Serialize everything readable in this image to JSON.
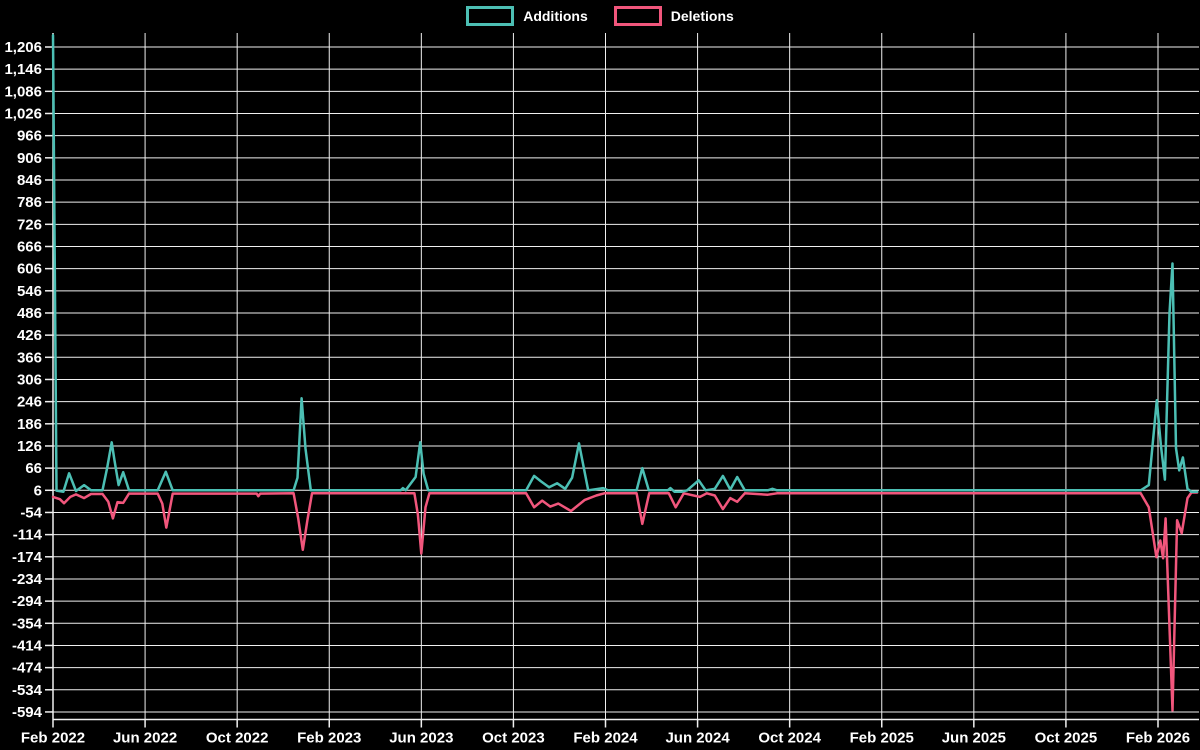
{
  "legend": {
    "items": [
      {
        "label": "Additions",
        "color": "#4cbfb4"
      },
      {
        "label": "Deletions",
        "color": "#f1567c"
      }
    ]
  },
  "colors": {
    "background": "#000000",
    "grid": "#f0f0f0",
    "axis": "#f0f0f0",
    "text": "#ffffff",
    "additions": "#4cbfb4",
    "deletions": "#f1567c"
  },
  "chart_data": {
    "type": "line",
    "title": "",
    "xlabel": "",
    "ylabel": "",
    "grid": true,
    "legend_position": "top-center",
    "x_axis": {
      "unit": "months since Feb 2022",
      "range": [
        0,
        49.75
      ],
      "ticks": [
        {
          "pos": 0,
          "label": "Feb 2022"
        },
        {
          "pos": 4,
          "label": "Jun 2022"
        },
        {
          "pos": 8,
          "label": "Oct 2022"
        },
        {
          "pos": 12,
          "label": "Feb 2023"
        },
        {
          "pos": 16,
          "label": "Jun 2023"
        },
        {
          "pos": 20,
          "label": "Oct 2023"
        },
        {
          "pos": 24,
          "label": "Feb 2024"
        },
        {
          "pos": 28,
          "label": "Jun 2024"
        },
        {
          "pos": 32,
          "label": "Oct 2024"
        },
        {
          "pos": 36,
          "label": "Feb 2025"
        },
        {
          "pos": 40,
          "label": "Jun 2025"
        },
        {
          "pos": 44,
          "label": "Oct 2025"
        },
        {
          "pos": 48,
          "label": "Feb 2026"
        }
      ]
    },
    "y_axis": {
      "step": 60,
      "ticks": [
        1206,
        1146,
        1086,
        1026,
        966,
        906,
        846,
        786,
        726,
        666,
        606,
        546,
        486,
        426,
        366,
        306,
        246,
        186,
        126,
        66,
        6,
        -54,
        -114,
        -174,
        -234,
        -294,
        -354,
        -414,
        -474,
        -534,
        -594
      ],
      "range": [
        -616,
        1241
      ]
    },
    "series": [
      {
        "name": "Additions",
        "color": "#4cbfb4",
        "points": [
          [
            0,
            1238
          ],
          [
            0.15,
            5
          ],
          [
            0.45,
            2
          ],
          [
            0.7,
            52
          ],
          [
            1.0,
            4
          ],
          [
            1.35,
            20
          ],
          [
            1.65,
            6
          ],
          [
            2.15,
            6
          ],
          [
            2.35,
            66
          ],
          [
            2.55,
            136
          ],
          [
            2.67,
            87
          ],
          [
            2.85,
            20
          ],
          [
            3.05,
            55
          ],
          [
            3.3,
            6
          ],
          [
            4.55,
            6
          ],
          [
            4.9,
            56
          ],
          [
            5.2,
            6
          ],
          [
            8,
            6
          ],
          [
            10.45,
            6
          ],
          [
            10.62,
            40
          ],
          [
            10.8,
            255
          ],
          [
            10.97,
            119
          ],
          [
            11.2,
            6
          ],
          [
            15.1,
            6
          ],
          [
            15.2,
            12
          ],
          [
            15.32,
            6
          ],
          [
            15.75,
            42
          ],
          [
            15.95,
            136
          ],
          [
            16.1,
            51
          ],
          [
            16.3,
            6
          ],
          [
            18,
            6
          ],
          [
            20.55,
            6
          ],
          [
            20.9,
            45
          ],
          [
            21.2,
            30
          ],
          [
            21.55,
            14
          ],
          [
            21.9,
            25
          ],
          [
            22.25,
            10
          ],
          [
            22.55,
            40
          ],
          [
            22.85,
            133
          ],
          [
            23.25,
            6
          ],
          [
            23.9,
            12
          ],
          [
            24.1,
            6
          ],
          [
            25.35,
            6
          ],
          [
            25.6,
            66
          ],
          [
            25.88,
            6
          ],
          [
            26.7,
            6
          ],
          [
            26.82,
            12
          ],
          [
            27.0,
            2
          ],
          [
            27.3,
            2
          ],
          [
            27.55,
            6
          ],
          [
            28.05,
            33
          ],
          [
            28.35,
            6
          ],
          [
            28.75,
            10
          ],
          [
            29.1,
            45
          ],
          [
            29.42,
            8
          ],
          [
            29.72,
            42
          ],
          [
            30.05,
            6
          ],
          [
            31.05,
            6
          ],
          [
            31.25,
            10
          ],
          [
            31.45,
            6
          ],
          [
            40,
            6
          ],
          [
            47.25,
            6
          ],
          [
            47.6,
            20
          ],
          [
            47.95,
            250
          ],
          [
            48.12,
            130
          ],
          [
            48.3,
            35
          ],
          [
            48.5,
            485
          ],
          [
            48.63,
            620
          ],
          [
            48.78,
            120
          ],
          [
            48.92,
            60
          ],
          [
            49.08,
            95
          ],
          [
            49.28,
            10
          ],
          [
            49.45,
            2
          ],
          [
            49.7,
            2
          ]
        ]
      },
      {
        "name": "Deletions",
        "color": "#f1567c",
        "points": [
          [
            0,
            -12
          ],
          [
            0.3,
            -18
          ],
          [
            0.48,
            -29
          ],
          [
            0.75,
            -12
          ],
          [
            1.0,
            -5
          ],
          [
            1.35,
            -15
          ],
          [
            1.65,
            -4
          ],
          [
            2.15,
            -4
          ],
          [
            2.4,
            -25
          ],
          [
            2.6,
            -70
          ],
          [
            2.8,
            -26
          ],
          [
            3.05,
            -28
          ],
          [
            3.3,
            -3
          ],
          [
            4.55,
            -3
          ],
          [
            4.75,
            -30
          ],
          [
            4.92,
            -95
          ],
          [
            5.2,
            -3
          ],
          [
            8,
            -3
          ],
          [
            8.85,
            -3
          ],
          [
            8.92,
            -10
          ],
          [
            9.0,
            -3
          ],
          [
            10.45,
            -2
          ],
          [
            10.65,
            -70
          ],
          [
            10.85,
            -155
          ],
          [
            11.05,
            -75
          ],
          [
            11.25,
            -2
          ],
          [
            15.7,
            -2
          ],
          [
            15.85,
            -60
          ],
          [
            16.0,
            -165
          ],
          [
            16.18,
            -40
          ],
          [
            16.35,
            -2
          ],
          [
            18,
            -2
          ],
          [
            20.55,
            -2
          ],
          [
            20.9,
            -40
          ],
          [
            21.25,
            -22
          ],
          [
            21.6,
            -38
          ],
          [
            21.95,
            -30
          ],
          [
            22.5,
            -50
          ],
          [
            23.1,
            -20
          ],
          [
            23.6,
            -8
          ],
          [
            23.95,
            -2
          ],
          [
            25.35,
            -2
          ],
          [
            25.6,
            -85
          ],
          [
            25.9,
            -2
          ],
          [
            26.75,
            -2
          ],
          [
            27.05,
            -40
          ],
          [
            27.4,
            -2
          ],
          [
            28.1,
            -12
          ],
          [
            28.4,
            -2
          ],
          [
            28.75,
            -8
          ],
          [
            29.1,
            -45
          ],
          [
            29.42,
            -15
          ],
          [
            29.72,
            -25
          ],
          [
            30.05,
            -2
          ],
          [
            31.05,
            -6
          ],
          [
            31.45,
            -2
          ],
          [
            40,
            -2
          ],
          [
            47.25,
            -2
          ],
          [
            47.6,
            -40
          ],
          [
            47.93,
            -175
          ],
          [
            48.1,
            -130
          ],
          [
            48.22,
            -178
          ],
          [
            48.33,
            -70
          ],
          [
            48.63,
            -590
          ],
          [
            48.83,
            -75
          ],
          [
            49.03,
            -110
          ],
          [
            49.28,
            -15
          ],
          [
            49.45,
            0
          ],
          [
            49.7,
            0
          ]
        ]
      }
    ]
  }
}
